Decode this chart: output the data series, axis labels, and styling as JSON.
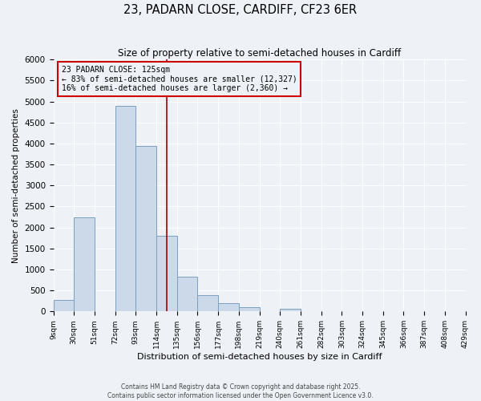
{
  "title": "23, PADARN CLOSE, CARDIFF, CF23 6ER",
  "subtitle": "Size of property relative to semi-detached houses in Cardiff",
  "xlabel": "Distribution of semi-detached houses by size in Cardiff",
  "ylabel": "Number of semi-detached properties",
  "bin_edges": [
    9,
    30,
    51,
    72,
    93,
    114,
    135,
    156,
    177,
    198,
    219,
    240,
    261,
    282,
    303,
    324,
    345,
    366,
    387,
    408,
    429
  ],
  "bin_counts": [
    270,
    2250,
    0,
    4900,
    3950,
    1800,
    830,
    390,
    200,
    105,
    0,
    70,
    0,
    0,
    0,
    0,
    0,
    0,
    0,
    0
  ],
  "bar_fill": "#ccd9e8",
  "bar_edge": "#7a9fc0",
  "vline_x": 125,
  "vline_color": "#aa0000",
  "annotation_box_edge": "#cc0000",
  "annotation_line1": "23 PADARN CLOSE: 125sqm",
  "annotation_line2": "← 83% of semi-detached houses are smaller (12,327)",
  "annotation_line3": "16% of semi-detached houses are larger (2,360) →",
  "ylim": [
    0,
    6000
  ],
  "yticks": [
    0,
    500,
    1000,
    1500,
    2000,
    2500,
    3000,
    3500,
    4000,
    4500,
    5000,
    5500,
    6000
  ],
  "background_color": "#eef2f7",
  "grid_color": "#d0d8e4",
  "footer_line1": "Contains HM Land Registry data © Crown copyright and database right 2025.",
  "footer_line2": "Contains public sector information licensed under the Open Government Licence v3.0.",
  "tick_labels": [
    "9sqm",
    "30sqm",
    "51sqm",
    "72sqm",
    "93sqm",
    "114sqm",
    "135sqm",
    "156sqm",
    "177sqm",
    "198sqm",
    "219sqm",
    "240sqm",
    "261sqm",
    "282sqm",
    "303sqm",
    "324sqm",
    "345sqm",
    "366sqm",
    "387sqm",
    "408sqm",
    "429sqm"
  ]
}
